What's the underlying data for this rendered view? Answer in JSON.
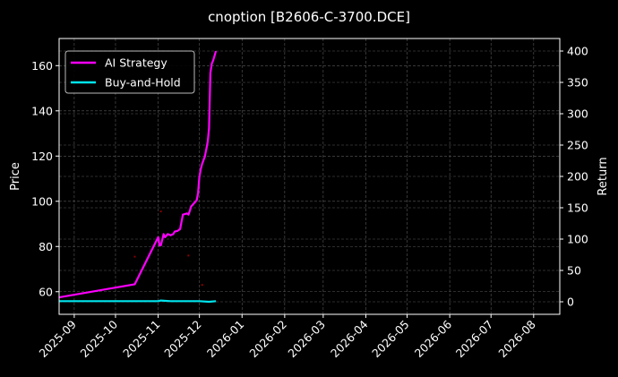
{
  "chart_data": {
    "type": "line",
    "title": "cnoption [B2606-C-3700.DCE]",
    "ylabel_left": "Price",
    "ylabel_right": "Return",
    "xlabel": "",
    "x_ticks": [
      "2025-09",
      "2025-10",
      "2025-11",
      "2025-12",
      "2026-01",
      "2026-02",
      "2026-03",
      "2026-04",
      "2026-05",
      "2026-06",
      "2026-07",
      "2026-08"
    ],
    "xlim": [
      "2025-08-21",
      "2026-08-20"
    ],
    "ylim_left": [
      50,
      172
    ],
    "yticks_left": [
      60,
      80,
      100,
      120,
      140,
      160
    ],
    "ylim_right": [
      -20,
      420
    ],
    "yticks_right": [
      0,
      50,
      100,
      150,
      200,
      250,
      300,
      350,
      400
    ],
    "grid": true,
    "legend_position": "upper-left",
    "series": [
      {
        "name": "AI Strategy",
        "axis": "right",
        "color": "#ff00ff",
        "points": [
          [
            "2025-08-21",
            7
          ],
          [
            "2025-10-15",
            28
          ],
          [
            "2025-11-01",
            103
          ],
          [
            "2025-11-02",
            90
          ],
          [
            "2025-11-03",
            90
          ],
          [
            "2025-11-05",
            108
          ],
          [
            "2025-11-06",
            103
          ],
          [
            "2025-11-08",
            108
          ],
          [
            "2025-11-10",
            106
          ],
          [
            "2025-11-12",
            108
          ],
          [
            "2025-11-13",
            112
          ],
          [
            "2025-11-15",
            113
          ],
          [
            "2025-11-17",
            116
          ],
          [
            "2025-11-19",
            139
          ],
          [
            "2025-11-22",
            141
          ],
          [
            "2025-11-23",
            139
          ],
          [
            "2025-11-24",
            145
          ],
          [
            "2025-11-25",
            152
          ],
          [
            "2025-11-27",
            157
          ],
          [
            "2025-11-29",
            162
          ],
          [
            "2025-11-30",
            173
          ],
          [
            "2025-12-01",
            199
          ],
          [
            "2025-12-02",
            212
          ],
          [
            "2025-12-03",
            220
          ],
          [
            "2025-12-05",
            232
          ],
          [
            "2025-12-07",
            255
          ],
          [
            "2025-12-08",
            277
          ],
          [
            "2025-12-09",
            365
          ],
          [
            "2025-12-10",
            380
          ],
          [
            "2025-12-11",
            385
          ],
          [
            "2025-12-13",
            400
          ]
        ]
      },
      {
        "name": "Buy-and-Hold",
        "axis": "right",
        "color": "#00e5ee",
        "points": [
          [
            "2025-08-21",
            1
          ],
          [
            "2025-10-15",
            1
          ],
          [
            "2025-11-01",
            1
          ],
          [
            "2025-11-03",
            2
          ],
          [
            "2025-11-10",
            1
          ],
          [
            "2025-11-20",
            1
          ],
          [
            "2025-12-01",
            1
          ],
          [
            "2025-12-08",
            0
          ],
          [
            "2025-12-13",
            1
          ]
        ]
      }
    ],
    "markers": {
      "color": "#8b0000",
      "axis": "left",
      "points": [
        [
          "2025-10-15",
          75.5
        ],
        [
          "2025-11-03",
          95.5
        ],
        [
          "2025-11-23",
          76
        ],
        [
          "2025-12-03",
          63
        ]
      ]
    }
  }
}
